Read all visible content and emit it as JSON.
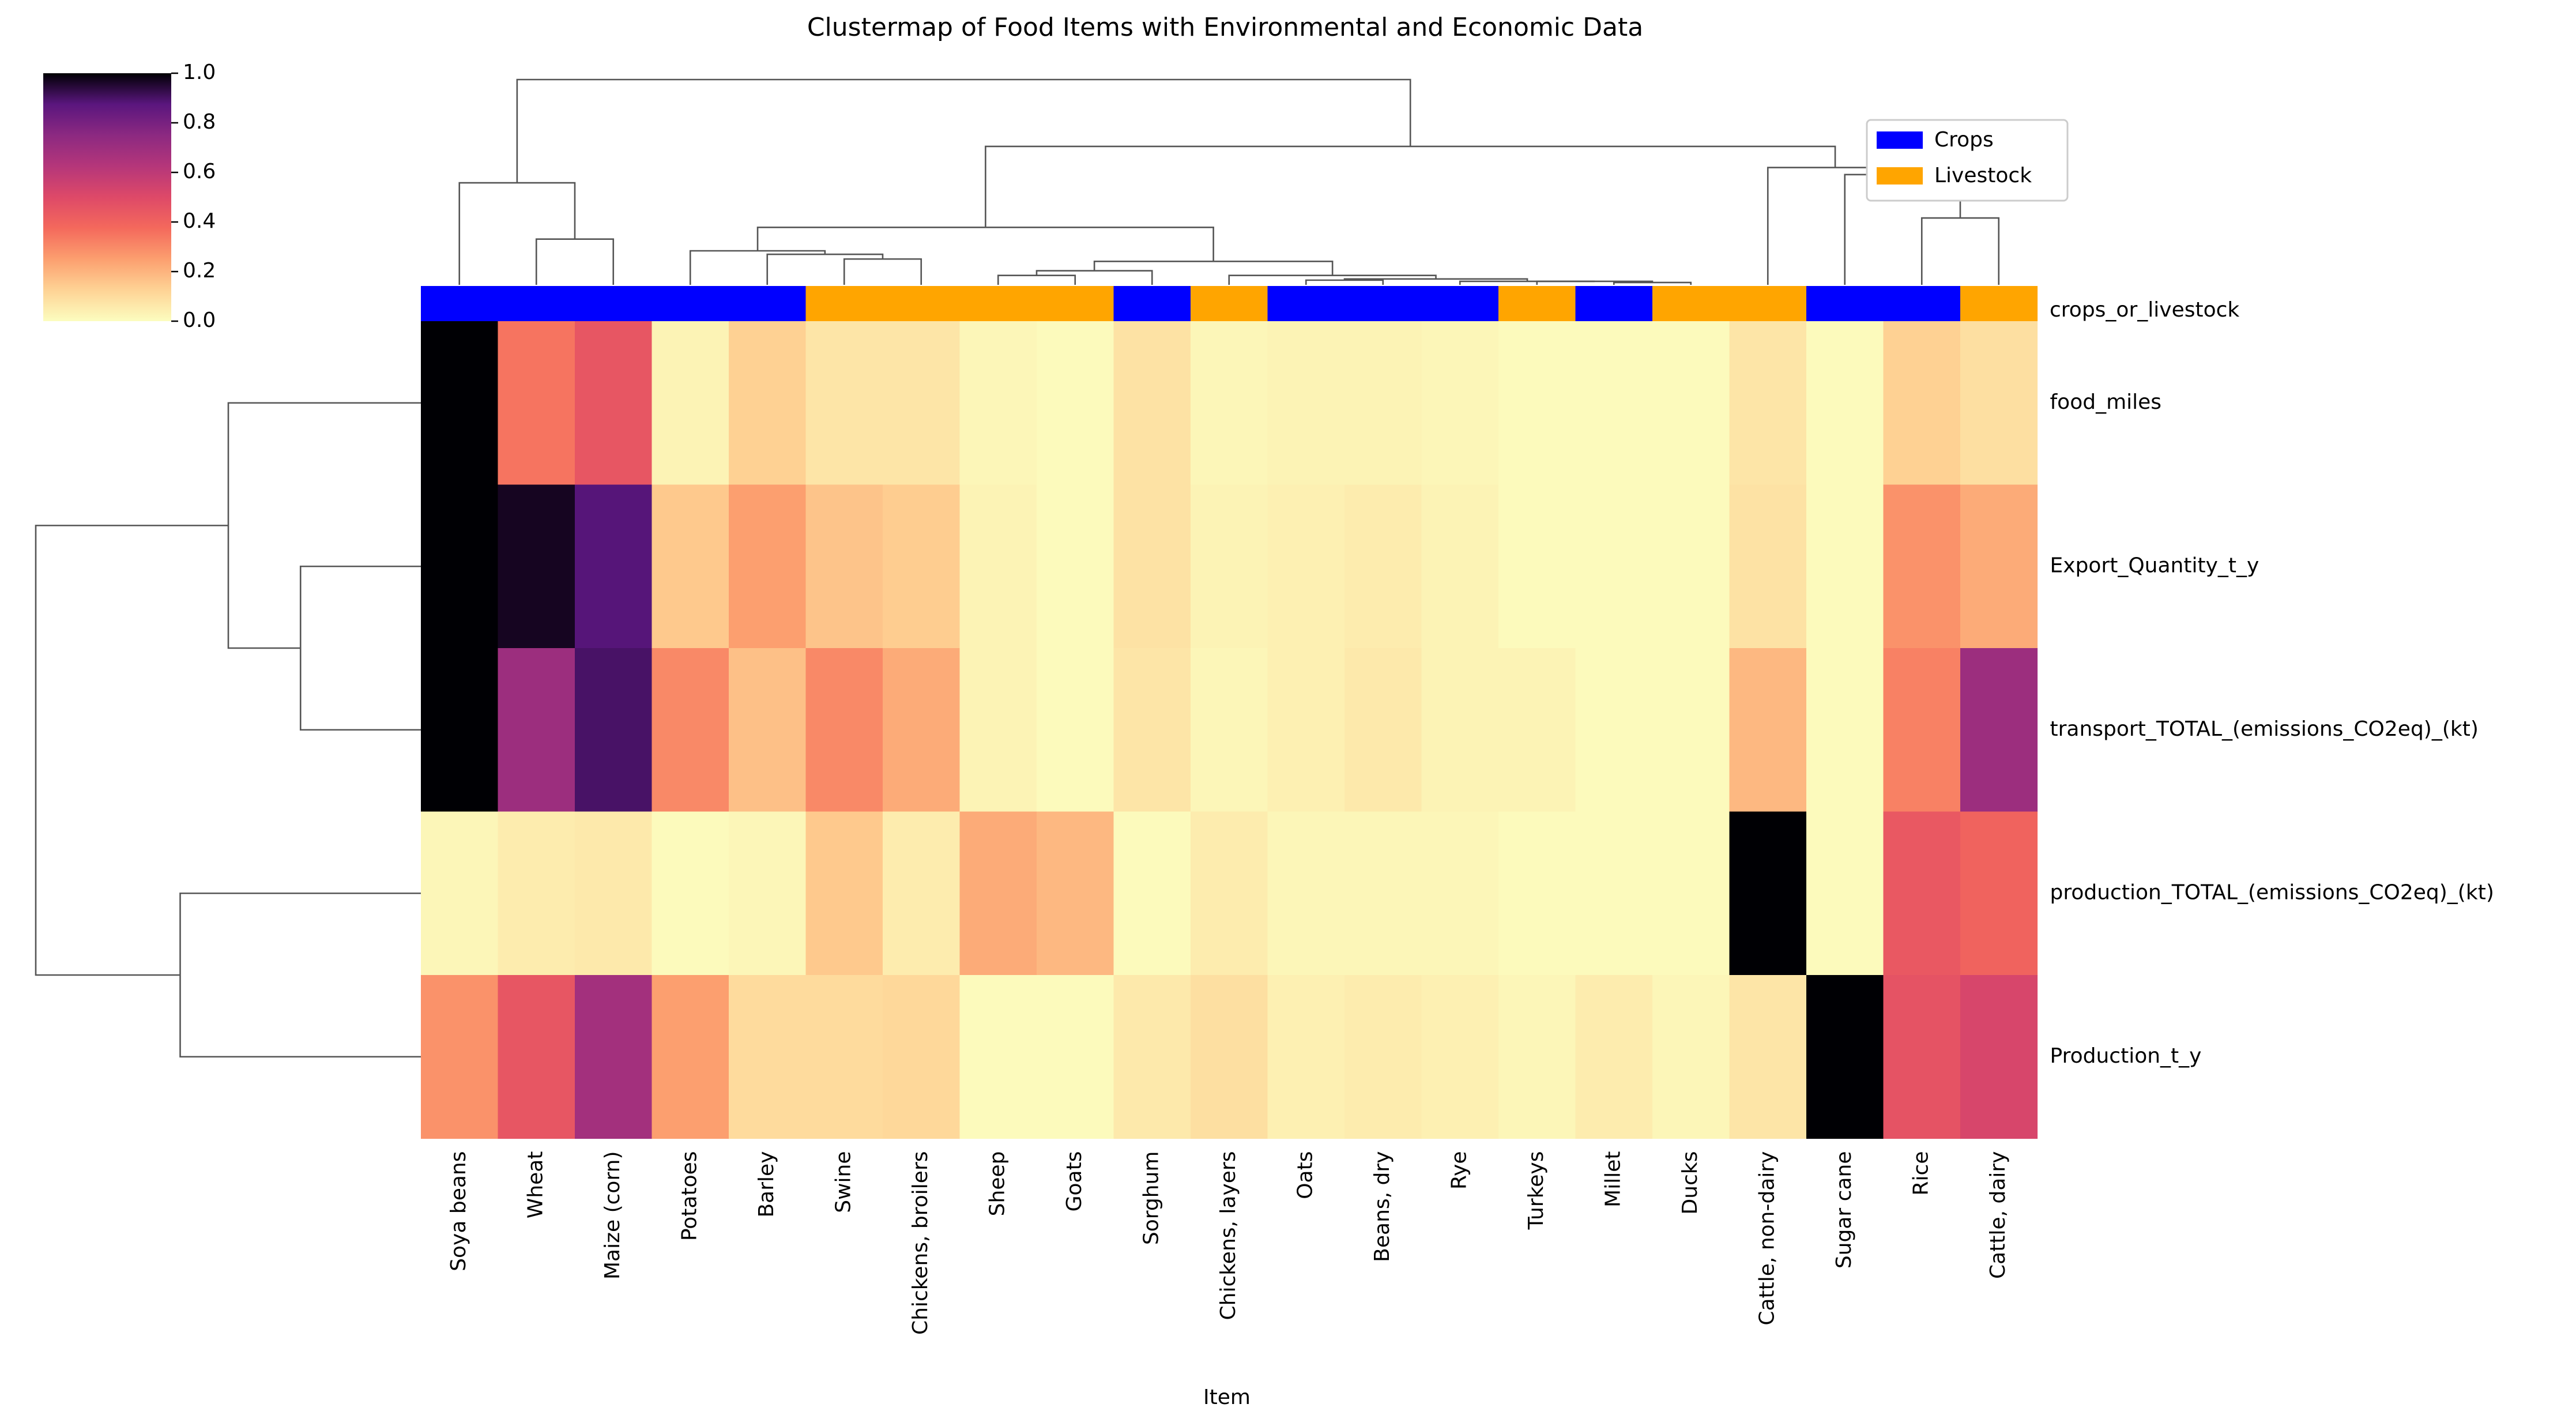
{
  "chart_data": {
    "type": "heatmap",
    "title": "Clustermap of Food Items with Environmental and Economic Data",
    "xlabel": "Item",
    "ylabel": "",
    "columns": [
      "Soya beans",
      "Wheat",
      "Maize (corn)",
      "Potatoes",
      "Barley",
      "Swine",
      "Chickens, broilers",
      "Sheep",
      "Goats",
      "Sorghum",
      "Chickens, layers",
      "Oats",
      "Beans, dry",
      "Rye",
      "Turkeys",
      "Millet",
      "Ducks",
      "Cattle, non-dairy",
      "Sugar cane",
      "Rice",
      "Cattle, dairy"
    ],
    "rows": [
      "food_miles",
      "Export_Quantity_t_y",
      "transport_TOTAL_(emissions_CO2eq)_(kt)",
      "production_TOTAL_(emissions_CO2eq)_(kt)",
      "Production_t_y"
    ],
    "values": [
      [
        1.0,
        0.35,
        0.45,
        0.03,
        0.13,
        0.07,
        0.07,
        0.02,
        0.01,
        0.08,
        0.02,
        0.03,
        0.03,
        0.02,
        0.01,
        0.01,
        0.01,
        0.07,
        0.01,
        0.13,
        0.09
      ],
      [
        1.0,
        0.97,
        0.88,
        0.15,
        0.25,
        0.16,
        0.14,
        0.03,
        0.01,
        0.08,
        0.03,
        0.04,
        0.05,
        0.03,
        0.01,
        0.01,
        0.01,
        0.08,
        0.01,
        0.28,
        0.22
      ],
      [
        1.0,
        0.7,
        0.9,
        0.3,
        0.17,
        0.3,
        0.22,
        0.03,
        0.01,
        0.07,
        0.02,
        0.04,
        0.06,
        0.03,
        0.03,
        0.01,
        0.01,
        0.19,
        0.01,
        0.32,
        0.7
      ],
      [
        0.02,
        0.05,
        0.06,
        0.01,
        0.02,
        0.15,
        0.05,
        0.22,
        0.19,
        0.01,
        0.05,
        0.02,
        0.02,
        0.02,
        0.01,
        0.01,
        0.01,
        1.0,
        0.01,
        0.44,
        0.4
      ],
      [
        0.28,
        0.45,
        0.68,
        0.25,
        0.1,
        0.1,
        0.11,
        0.01,
        0.01,
        0.06,
        0.09,
        0.04,
        0.05,
        0.04,
        0.02,
        0.05,
        0.02,
        0.07,
        1.0,
        0.46,
        0.52
      ]
    ],
    "column_group_label": "crops_or_livestock",
    "column_groups": [
      "Crops",
      "Crops",
      "Crops",
      "Crops",
      "Crops",
      "Livestock",
      "Livestock",
      "Livestock",
      "Livestock",
      "Crops",
      "Livestock",
      "Crops",
      "Crops",
      "Crops",
      "Livestock",
      "Crops",
      "Livestock",
      "Livestock",
      "Crops",
      "Crops",
      "Livestock"
    ],
    "legend": {
      "placement": "top-right",
      "entries": [
        {
          "name": "Crops",
          "color": "#0000ff"
        },
        {
          "name": "Livestock",
          "color": "#ffa500"
        }
      ]
    },
    "colorbar": {
      "colormap": "magma_r",
      "range": [
        0.0,
        1.0
      ],
      "ticks": [
        "0.0",
        "0.2",
        "0.4",
        "0.6",
        "0.8",
        "1.0"
      ],
      "tick_values": [
        0.0,
        0.2,
        0.4,
        0.6,
        0.8,
        1.0
      ]
    },
    "column_dendrogram_merges": [
      [
        15,
        16
      ],
      [
        14,
        21
      ],
      [
        13,
        22
      ],
      [
        11,
        12
      ],
      [
        23,
        24
      ],
      [
        10,
        25
      ],
      [
        7,
        8
      ],
      [
        9,
        27
      ],
      [
        28,
        26
      ],
      [
        5,
        6
      ],
      [
        4,
        30
      ],
      [
        3,
        31
      ],
      [
        29,
        32
      ],
      [
        1,
        2
      ],
      [
        0,
        34
      ],
      [
        19,
        20
      ],
      [
        18,
        36
      ],
      [
        17,
        37
      ],
      [
        33,
        38
      ],
      [
        35,
        39
      ]
    ],
    "column_dendrogram_heights": [
      0.02,
      0.03,
      0.03,
      0.04,
      0.05,
      0.08,
      0.08,
      0.12,
      0.2,
      0.22,
      0.26,
      0.29,
      0.49,
      0.39,
      0.87,
      0.57,
      0.94,
      1.0,
      1.18,
      1.75
    ],
    "row_dendrogram_merges": [
      [
        1,
        2
      ],
      [
        0,
        5
      ],
      [
        3,
        4
      ],
      [
        6,
        7
      ]
    ],
    "row_dendrogram_heights": [
      0.5,
      0.8,
      1.0,
      1.6
    ]
  },
  "colors": {
    "background": "#ffffff",
    "dendrogram_line": "#555555"
  }
}
